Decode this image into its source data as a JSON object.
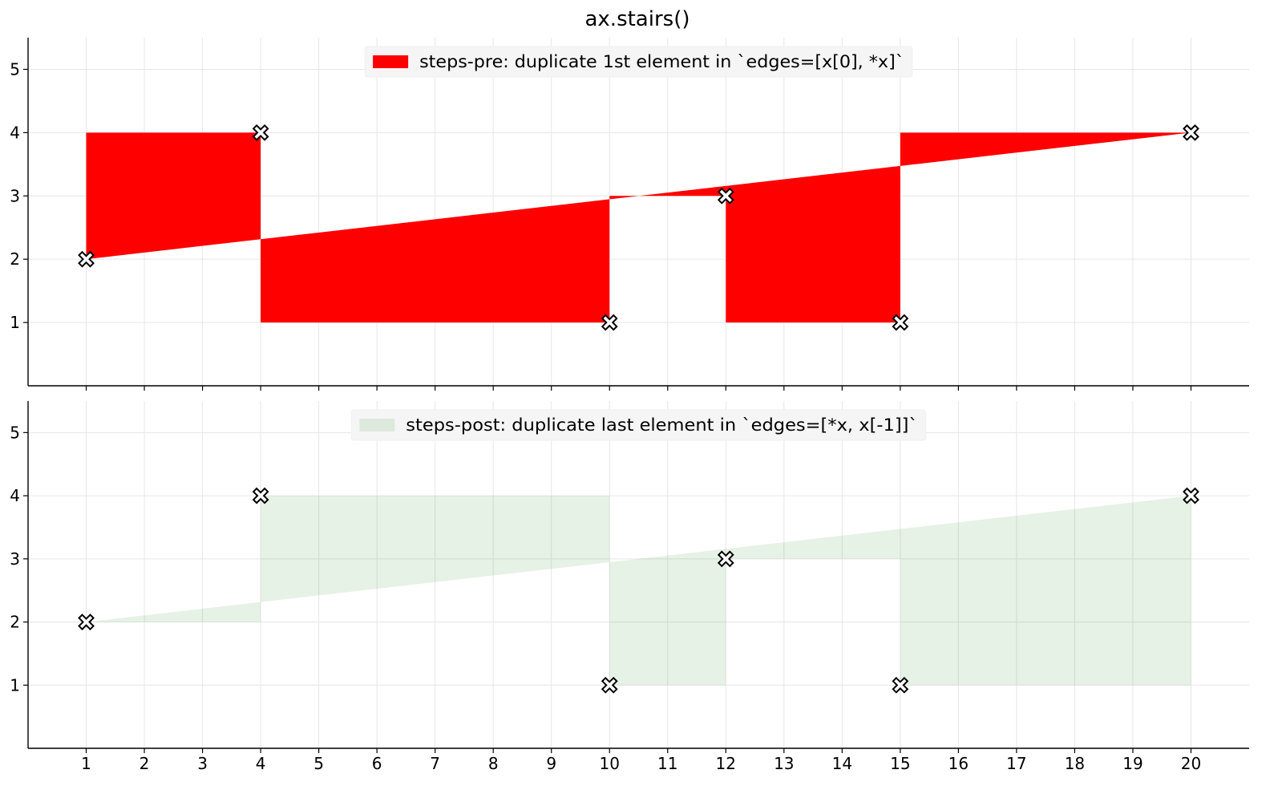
{
  "chart_data": {
    "title": "ax.stairs()",
    "type": "area",
    "x": [
      1,
      4,
      10,
      12,
      15,
      20
    ],
    "y": [
      2,
      4,
      1,
      3,
      1,
      4
    ],
    "xlim": [
      0,
      21
    ],
    "ylim": [
      0,
      5.5
    ],
    "xticks": [
      "1",
      "2",
      "3",
      "4",
      "5",
      "6",
      "7",
      "8",
      "9",
      "10",
      "11",
      "12",
      "13",
      "14",
      "15",
      "16",
      "17",
      "18",
      "19",
      "20"
    ],
    "yticks": [
      "1",
      "2",
      "3",
      "4",
      "5"
    ],
    "grid": true,
    "legend_placement": "top-center",
    "marker": "X",
    "panels": [
      {
        "name": "steps-pre: duplicate 1st element in `edges=[x[0], *x]`",
        "mode": "pre",
        "color": "#ff0000",
        "fill_alpha": 1.0
      },
      {
        "name": "steps-post: duplicate last element in `edges=[*x, x[-1]]`",
        "mode": "post",
        "color": "#008000",
        "fill_alpha": 0.1
      }
    ]
  }
}
